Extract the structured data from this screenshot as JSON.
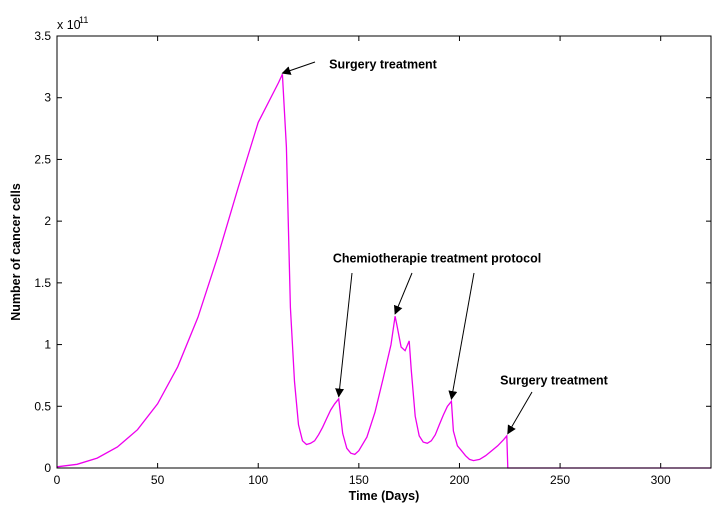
{
  "chart_data": {
    "type": "line",
    "title": "",
    "xlabel": "Time (Days)",
    "ylabel": "Number of cancer cells",
    "y_multiplier": "x 10",
    "y_multiplier_exponent": "11",
    "xlim": [
      0,
      325
    ],
    "ylim": [
      0,
      3.5
    ],
    "x_ticks": [
      0,
      50,
      100,
      150,
      200,
      250,
      300
    ],
    "x_tick_labels": [
      "0",
      "50",
      "100",
      "150",
      "200",
      "250",
      "300"
    ],
    "y_ticks": [
      0,
      0.5,
      1,
      1.5,
      2,
      2.5,
      3,
      3.5
    ],
    "y_tick_labels": [
      "0",
      "0.5",
      "1",
      "1.5",
      "2",
      "2.5",
      "3",
      "3.5"
    ],
    "grid": false,
    "line_color": "#ee00ee",
    "series": [
      {
        "x": [
          0,
          10,
          20,
          30,
          40,
          50,
          60,
          70,
          80,
          90,
          100,
          110,
          112,
          114,
          116,
          118,
          120,
          122,
          124,
          126,
          128,
          130,
          132,
          134,
          136,
          138,
          140,
          142,
          144,
          146,
          148,
          150,
          154,
          158,
          162,
          166,
          168,
          169,
          171,
          173,
          175,
          176,
          178,
          180,
          182,
          184,
          186,
          188,
          190,
          192,
          194,
          196,
          197,
          199,
          201,
          203,
          205,
          207,
          210,
          213,
          216,
          219,
          222,
          223.5,
          224,
          230,
          250,
          275,
          300,
          325
        ],
        "y": [
          0.01,
          0.03,
          0.08,
          0.17,
          0.31,
          0.52,
          0.82,
          1.22,
          1.72,
          2.27,
          2.8,
          3.12,
          3.19,
          2.6,
          1.3,
          0.7,
          0.35,
          0.22,
          0.19,
          0.2,
          0.22,
          0.27,
          0.33,
          0.4,
          0.47,
          0.52,
          0.56,
          0.28,
          0.16,
          0.12,
          0.11,
          0.14,
          0.25,
          0.45,
          0.72,
          1.0,
          1.23,
          1.15,
          0.98,
          0.95,
          1.03,
          0.8,
          0.42,
          0.26,
          0.21,
          0.2,
          0.22,
          0.27,
          0.35,
          0.43,
          0.5,
          0.54,
          0.3,
          0.18,
          0.14,
          0.1,
          0.07,
          0.06,
          0.07,
          0.1,
          0.14,
          0.18,
          0.23,
          0.26,
          0.0,
          0.0,
          0.0,
          0.0,
          0.0,
          0.0
        ]
      }
    ],
    "annotations": [
      {
        "text": "Surgery treatment",
        "arrows_to": [
          [
            112,
            3.19
          ]
        ]
      },
      {
        "text": "Chemiotherapie treatment protocol",
        "arrows_to": [
          [
            140,
            0.57
          ],
          [
            168,
            1.24
          ],
          [
            196,
            0.55
          ]
        ]
      },
      {
        "text": "Surgery treatment",
        "arrows_to": [
          [
            224,
            0.27
          ]
        ]
      }
    ]
  }
}
